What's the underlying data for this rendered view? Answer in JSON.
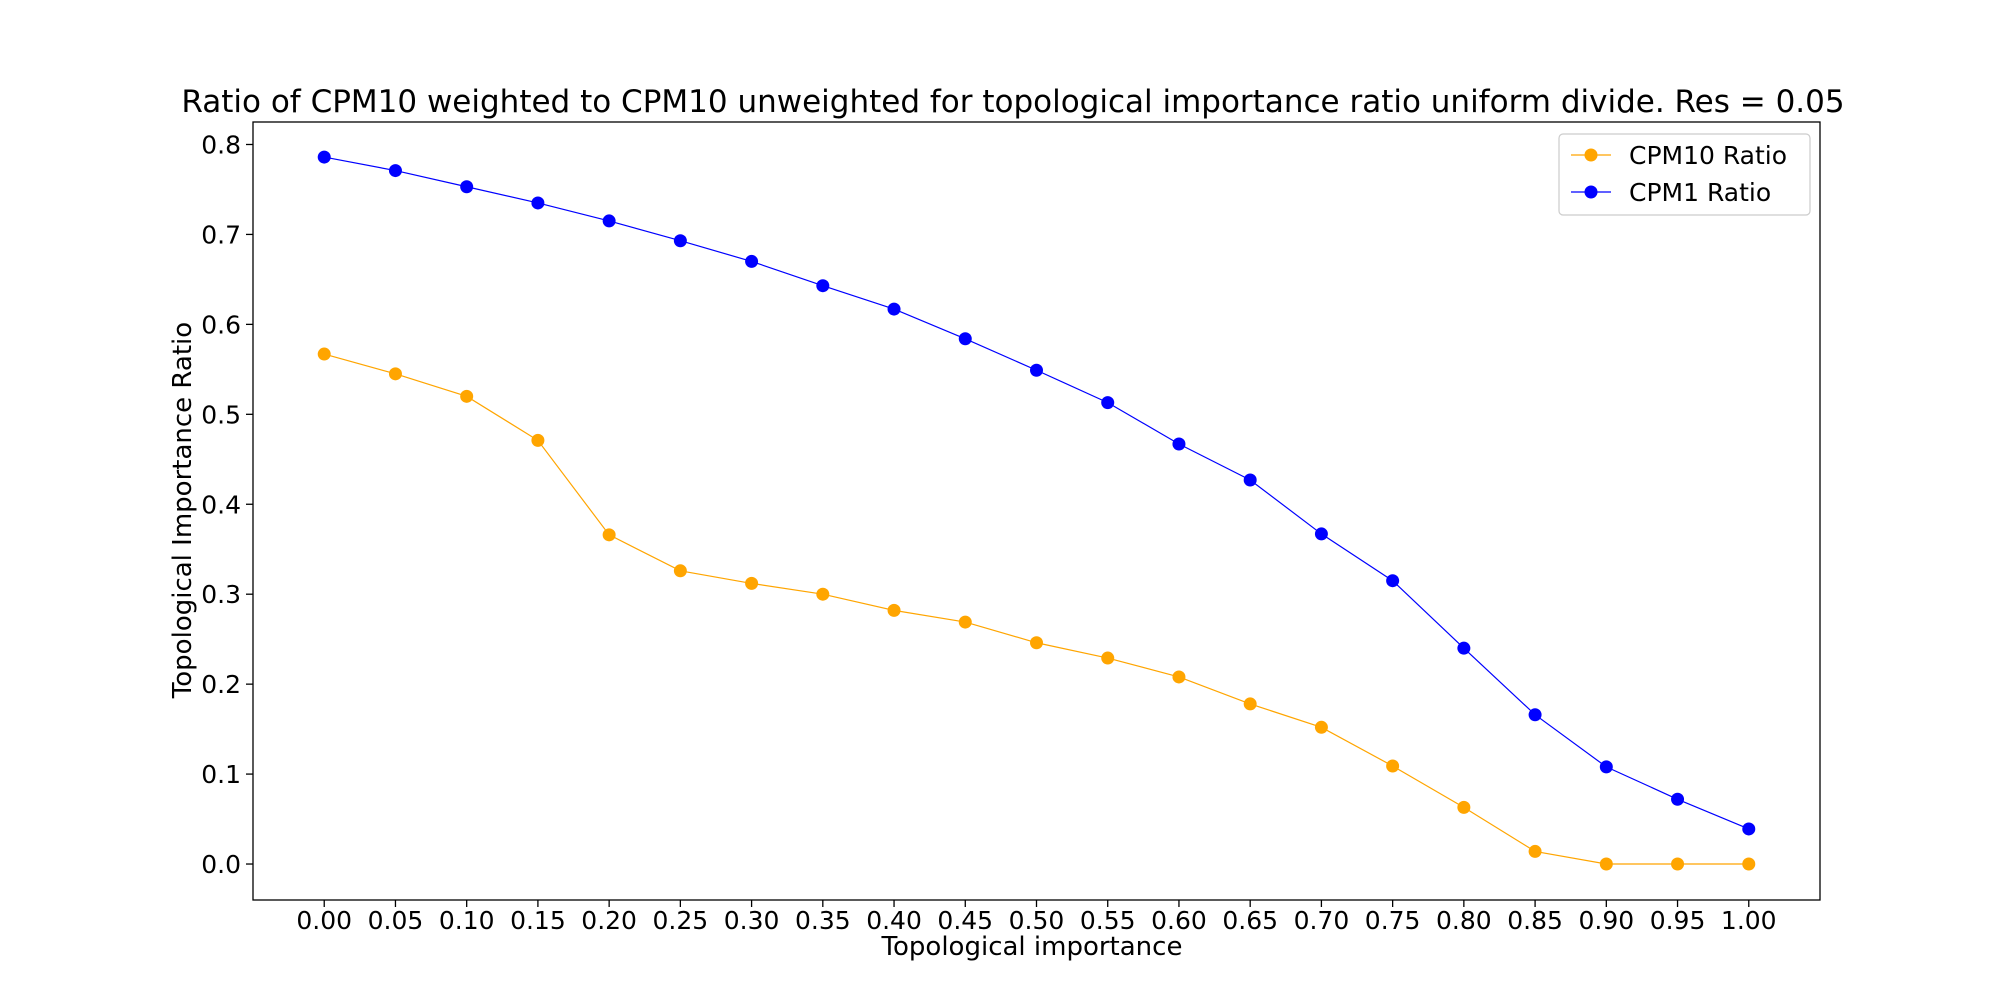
{
  "chart_data": {
    "type": "line",
    "title": "Ratio of CPM10 weighted to CPM10 unweighted for topological importance ratio uniform divide. Res = 0.05",
    "xlabel": "Topological importance",
    "ylabel": "Topological Importance Ratio",
    "x": [
      0.0,
      0.05,
      0.1,
      0.15,
      0.2,
      0.25,
      0.3,
      0.35,
      0.4,
      0.45,
      0.5,
      0.55,
      0.6,
      0.65,
      0.7,
      0.75,
      0.8,
      0.85,
      0.9,
      0.95,
      1.0
    ],
    "x_tick_labels": [
      "0.00",
      "0.05",
      "0.10",
      "0.15",
      "0.20",
      "0.25",
      "0.30",
      "0.35",
      "0.40",
      "0.45",
      "0.50",
      "0.55",
      "0.60",
      "0.65",
      "0.70",
      "0.75",
      "0.80",
      "0.85",
      "0.90",
      "0.95",
      "1.00"
    ],
    "y_ticks": [
      0.0,
      0.1,
      0.2,
      0.3,
      0.4,
      0.5,
      0.6,
      0.7,
      0.8
    ],
    "y_tick_labels": [
      "0.0",
      "0.1",
      "0.2",
      "0.3",
      "0.4",
      "0.5",
      "0.6",
      "0.7",
      "0.8"
    ],
    "xlim": [
      -0.05,
      1.05
    ],
    "ylim": [
      -0.04,
      0.825
    ],
    "grid": false,
    "legend_position": "top-right",
    "series": [
      {
        "name": "CPM10 Ratio",
        "color": "#FFA500",
        "marker": "circle",
        "values": [
          0.567,
          0.545,
          0.52,
          0.471,
          0.366,
          0.326,
          0.312,
          0.3,
          0.282,
          0.269,
          0.246,
          0.229,
          0.208,
          0.178,
          0.152,
          0.109,
          0.063,
          0.014,
          0.0,
          0.0,
          0.0
        ]
      },
      {
        "name": "CPM1 Ratio",
        "color": "#0000FF",
        "marker": "circle",
        "values": [
          0.786,
          0.771,
          0.753,
          0.735,
          0.715,
          0.693,
          0.67,
          0.643,
          0.617,
          0.584,
          0.549,
          0.513,
          0.467,
          0.427,
          0.367,
          0.315,
          0.24,
          0.166,
          0.108,
          0.072,
          0.039
        ]
      }
    ]
  }
}
